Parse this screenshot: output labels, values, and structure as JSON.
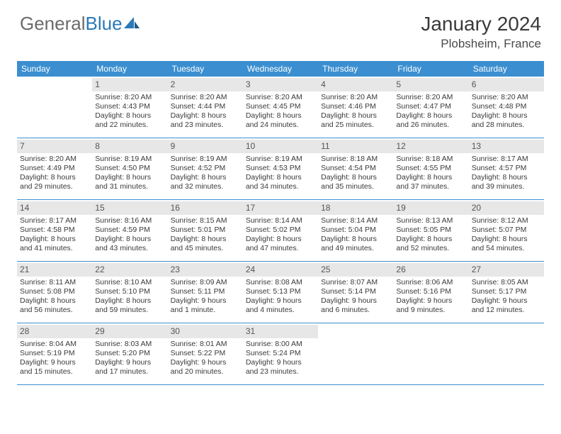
{
  "logo": {
    "text1": "General",
    "text2": "Blue"
  },
  "title": "January 2024",
  "location": "Plobsheim, France",
  "colors": {
    "header_bg": "#3b8fd0",
    "daynum_bg": "#e7e7e7",
    "week_divider": "#3b8fd0",
    "text": "#3a3a3a",
    "logo_gray": "#6b6b6b",
    "logo_blue": "#2a7ab8"
  },
  "dow": [
    "Sunday",
    "Monday",
    "Tuesday",
    "Wednesday",
    "Thursday",
    "Friday",
    "Saturday"
  ],
  "weeks": [
    [
      {
        "n": "",
        "l": [
          "",
          "",
          "",
          ""
        ]
      },
      {
        "n": "1",
        "l": [
          "Sunrise: 8:20 AM",
          "Sunset: 4:43 PM",
          "Daylight: 8 hours",
          "and 22 minutes."
        ]
      },
      {
        "n": "2",
        "l": [
          "Sunrise: 8:20 AM",
          "Sunset: 4:44 PM",
          "Daylight: 8 hours",
          "and 23 minutes."
        ]
      },
      {
        "n": "3",
        "l": [
          "Sunrise: 8:20 AM",
          "Sunset: 4:45 PM",
          "Daylight: 8 hours",
          "and 24 minutes."
        ]
      },
      {
        "n": "4",
        "l": [
          "Sunrise: 8:20 AM",
          "Sunset: 4:46 PM",
          "Daylight: 8 hours",
          "and 25 minutes."
        ]
      },
      {
        "n": "5",
        "l": [
          "Sunrise: 8:20 AM",
          "Sunset: 4:47 PM",
          "Daylight: 8 hours",
          "and 26 minutes."
        ]
      },
      {
        "n": "6",
        "l": [
          "Sunrise: 8:20 AM",
          "Sunset: 4:48 PM",
          "Daylight: 8 hours",
          "and 28 minutes."
        ]
      }
    ],
    [
      {
        "n": "7",
        "l": [
          "Sunrise: 8:20 AM",
          "Sunset: 4:49 PM",
          "Daylight: 8 hours",
          "and 29 minutes."
        ]
      },
      {
        "n": "8",
        "l": [
          "Sunrise: 8:19 AM",
          "Sunset: 4:50 PM",
          "Daylight: 8 hours",
          "and 31 minutes."
        ]
      },
      {
        "n": "9",
        "l": [
          "Sunrise: 8:19 AM",
          "Sunset: 4:52 PM",
          "Daylight: 8 hours",
          "and 32 minutes."
        ]
      },
      {
        "n": "10",
        "l": [
          "Sunrise: 8:19 AM",
          "Sunset: 4:53 PM",
          "Daylight: 8 hours",
          "and 34 minutes."
        ]
      },
      {
        "n": "11",
        "l": [
          "Sunrise: 8:18 AM",
          "Sunset: 4:54 PM",
          "Daylight: 8 hours",
          "and 35 minutes."
        ]
      },
      {
        "n": "12",
        "l": [
          "Sunrise: 8:18 AM",
          "Sunset: 4:55 PM",
          "Daylight: 8 hours",
          "and 37 minutes."
        ]
      },
      {
        "n": "13",
        "l": [
          "Sunrise: 8:17 AM",
          "Sunset: 4:57 PM",
          "Daylight: 8 hours",
          "and 39 minutes."
        ]
      }
    ],
    [
      {
        "n": "14",
        "l": [
          "Sunrise: 8:17 AM",
          "Sunset: 4:58 PM",
          "Daylight: 8 hours",
          "and 41 minutes."
        ]
      },
      {
        "n": "15",
        "l": [
          "Sunrise: 8:16 AM",
          "Sunset: 4:59 PM",
          "Daylight: 8 hours",
          "and 43 minutes."
        ]
      },
      {
        "n": "16",
        "l": [
          "Sunrise: 8:15 AM",
          "Sunset: 5:01 PM",
          "Daylight: 8 hours",
          "and 45 minutes."
        ]
      },
      {
        "n": "17",
        "l": [
          "Sunrise: 8:14 AM",
          "Sunset: 5:02 PM",
          "Daylight: 8 hours",
          "and 47 minutes."
        ]
      },
      {
        "n": "18",
        "l": [
          "Sunrise: 8:14 AM",
          "Sunset: 5:04 PM",
          "Daylight: 8 hours",
          "and 49 minutes."
        ]
      },
      {
        "n": "19",
        "l": [
          "Sunrise: 8:13 AM",
          "Sunset: 5:05 PM",
          "Daylight: 8 hours",
          "and 52 minutes."
        ]
      },
      {
        "n": "20",
        "l": [
          "Sunrise: 8:12 AM",
          "Sunset: 5:07 PM",
          "Daylight: 8 hours",
          "and 54 minutes."
        ]
      }
    ],
    [
      {
        "n": "21",
        "l": [
          "Sunrise: 8:11 AM",
          "Sunset: 5:08 PM",
          "Daylight: 8 hours",
          "and 56 minutes."
        ]
      },
      {
        "n": "22",
        "l": [
          "Sunrise: 8:10 AM",
          "Sunset: 5:10 PM",
          "Daylight: 8 hours",
          "and 59 minutes."
        ]
      },
      {
        "n": "23",
        "l": [
          "Sunrise: 8:09 AM",
          "Sunset: 5:11 PM",
          "Daylight: 9 hours",
          "and 1 minute."
        ]
      },
      {
        "n": "24",
        "l": [
          "Sunrise: 8:08 AM",
          "Sunset: 5:13 PM",
          "Daylight: 9 hours",
          "and 4 minutes."
        ]
      },
      {
        "n": "25",
        "l": [
          "Sunrise: 8:07 AM",
          "Sunset: 5:14 PM",
          "Daylight: 9 hours",
          "and 6 minutes."
        ]
      },
      {
        "n": "26",
        "l": [
          "Sunrise: 8:06 AM",
          "Sunset: 5:16 PM",
          "Daylight: 9 hours",
          "and 9 minutes."
        ]
      },
      {
        "n": "27",
        "l": [
          "Sunrise: 8:05 AM",
          "Sunset: 5:17 PM",
          "Daylight: 9 hours",
          "and 12 minutes."
        ]
      }
    ],
    [
      {
        "n": "28",
        "l": [
          "Sunrise: 8:04 AM",
          "Sunset: 5:19 PM",
          "Daylight: 9 hours",
          "and 15 minutes."
        ]
      },
      {
        "n": "29",
        "l": [
          "Sunrise: 8:03 AM",
          "Sunset: 5:20 PM",
          "Daylight: 9 hours",
          "and 17 minutes."
        ]
      },
      {
        "n": "30",
        "l": [
          "Sunrise: 8:01 AM",
          "Sunset: 5:22 PM",
          "Daylight: 9 hours",
          "and 20 minutes."
        ]
      },
      {
        "n": "31",
        "l": [
          "Sunrise: 8:00 AM",
          "Sunset: 5:24 PM",
          "Daylight: 9 hours",
          "and 23 minutes."
        ]
      },
      {
        "n": "",
        "l": [
          "",
          "",
          "",
          ""
        ]
      },
      {
        "n": "",
        "l": [
          "",
          "",
          "",
          ""
        ]
      },
      {
        "n": "",
        "l": [
          "",
          "",
          "",
          ""
        ]
      }
    ]
  ]
}
